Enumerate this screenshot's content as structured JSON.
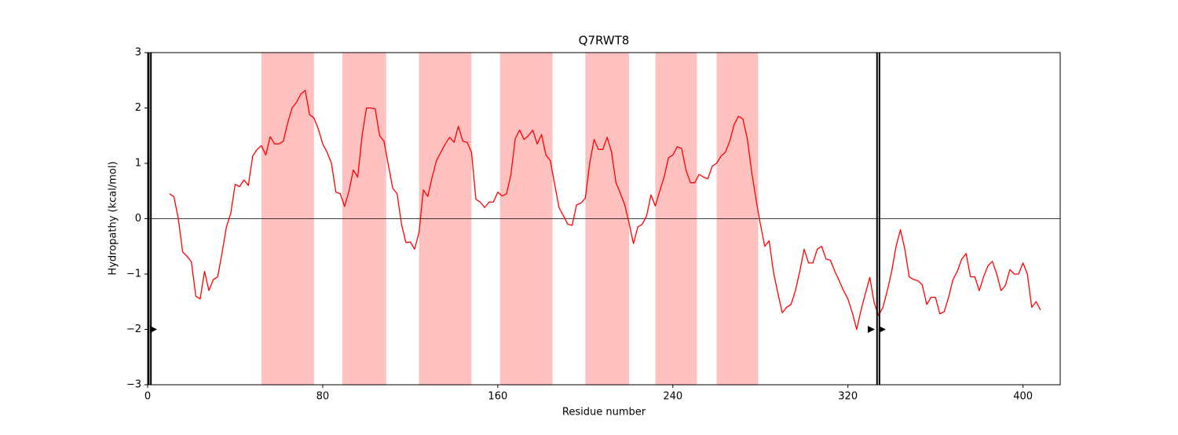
{
  "chart_data": {
    "type": "line",
    "title": "Q7RWT8",
    "xlabel": "Residue number",
    "ylabel": "Hydropathy (kcal/mol)",
    "xlim": [
      0,
      417
    ],
    "ylim": [
      -3,
      3
    ],
    "xticks": [
      0,
      80,
      160,
      240,
      320,
      400
    ],
    "yticks": [
      {
        "value": -3,
        "label": "−3"
      },
      {
        "value": -2,
        "label": "−2"
      },
      {
        "value": -1,
        "label": "−1"
      },
      0,
      1,
      2,
      3
    ],
    "hline": 0,
    "shaded_regions": [
      [
        52,
        76
      ],
      [
        89,
        109
      ],
      [
        124,
        148
      ],
      [
        161,
        185
      ],
      [
        200,
        220
      ],
      [
        232,
        251
      ],
      [
        260,
        279
      ]
    ],
    "shade_color": "#ffc0c0",
    "vlines": [
      0.5,
      1.5,
      333.3,
      334.4
    ],
    "markers": {
      "x": [
        2.5,
        330.5,
        335.5
      ],
      "y": [
        -2,
        -2,
        -2
      ]
    },
    "series": [
      {
        "color": "#ff0000",
        "x": [
          10,
          12,
          14,
          16,
          18,
          20,
          22,
          24,
          26,
          28,
          30,
          32,
          34,
          36,
          38,
          40,
          42,
          44,
          46,
          48,
          50,
          52,
          54,
          56,
          58,
          60,
          62,
          64,
          66,
          68,
          70,
          72,
          74,
          76,
          78,
          80,
          82,
          84,
          86,
          88,
          90,
          92,
          94,
          96,
          98,
          100,
          102,
          104,
          106,
          108,
          110,
          112,
          114,
          116,
          118,
          120,
          122,
          124,
          126,
          128,
          130,
          132,
          134,
          136,
          138,
          140,
          142,
          144,
          146,
          148,
          150,
          152,
          154,
          156,
          158,
          160,
          162,
          164,
          166,
          168,
          170,
          172,
          174,
          176,
          178,
          180,
          182,
          184,
          186,
          188,
          190,
          192,
          194,
          196,
          198,
          200,
          202,
          204,
          206,
          208,
          210,
          212,
          214,
          216,
          218,
          220,
          222,
          224,
          226,
          228,
          230,
          232,
          234,
          236,
          238,
          240,
          242,
          244,
          246,
          248,
          250,
          252,
          254,
          256,
          258,
          260,
          262,
          264,
          266,
          268,
          270,
          272,
          274,
          276,
          278,
          280,
          282,
          284,
          286,
          288,
          290,
          292,
          294,
          296,
          298,
          300,
          302,
          304,
          306,
          308,
          310,
          312,
          314,
          316,
          318,
          320,
          322,
          324,
          326,
          328,
          330,
          332,
          334,
          336,
          338,
          340,
          342,
          344,
          346,
          348,
          350,
          352,
          354,
          356,
          358,
          360,
          362,
          364,
          366,
          368,
          370,
          372,
          374,
          376,
          378,
          380,
          382,
          384,
          386,
          388,
          390,
          392,
          394,
          396,
          398,
          400,
          402,
          404,
          406,
          408
        ],
        "values": [
          0.45,
          0.4,
          0.0,
          -0.6,
          -0.68,
          -0.78,
          -1.4,
          -1.45,
          -0.95,
          -1.3,
          -1.1,
          -1.05,
          -0.62,
          -0.15,
          0.1,
          0.62,
          0.58,
          0.7,
          0.6,
          1.13,
          1.25,
          1.32,
          1.15,
          1.48,
          1.35,
          1.35,
          1.4,
          1.73,
          2.0,
          2.1,
          2.25,
          2.32,
          1.88,
          1.82,
          1.62,
          1.35,
          1.2,
          1.0,
          0.48,
          0.45,
          0.22,
          0.5,
          0.88,
          0.75,
          1.5,
          2.0,
          2.0,
          1.98,
          1.5,
          1.4,
          0.97,
          0.55,
          0.45,
          -0.1,
          -0.43,
          -0.42,
          -0.55,
          -0.25,
          0.52,
          0.4,
          0.75,
          1.05,
          1.2,
          1.35,
          1.47,
          1.38,
          1.67,
          1.4,
          1.38,
          1.2,
          0.35,
          0.3,
          0.2,
          0.3,
          0.3,
          0.48,
          0.41,
          0.45,
          0.8,
          1.45,
          1.6,
          1.43,
          1.5,
          1.6,
          1.35,
          1.52,
          1.15,
          1.05,
          0.62,
          0.2,
          0.05,
          -0.1,
          -0.12,
          0.25,
          0.28,
          0.37,
          1.0,
          1.43,
          1.25,
          1.25,
          1.47,
          1.2,
          0.65,
          0.46,
          0.25,
          -0.08,
          -0.45,
          -0.15,
          -0.1,
          0.05,
          0.43,
          0.23,
          0.5,
          0.75,
          1.1,
          1.15,
          1.3,
          1.27,
          0.88,
          0.65,
          0.65,
          0.8,
          0.75,
          0.72,
          0.95,
          1.0,
          1.13,
          1.2,
          1.4,
          1.7,
          1.85,
          1.8,
          1.45,
          0.85,
          0.35,
          -0.1,
          -0.5,
          -0.4,
          -0.97,
          -1.35,
          -1.7,
          -1.6,
          -1.55,
          -1.3,
          -0.95,
          -0.55,
          -0.8,
          -0.8,
          -0.55,
          -0.5,
          -0.73,
          -0.75,
          -0.95,
          -1.12,
          -1.3,
          -1.45,
          -1.7,
          -2.0,
          -1.65,
          -1.35,
          -1.06,
          -1.52,
          -1.75,
          -1.6,
          -1.3,
          -0.95,
          -0.5,
          -0.2,
          -0.55,
          -1.05,
          -1.1,
          -1.12,
          -1.2,
          -1.55,
          -1.42,
          -1.42,
          -1.72,
          -1.68,
          -1.42,
          -1.1,
          -0.95,
          -0.73,
          -0.63,
          -1.05,
          -1.05,
          -1.3,
          -1.05,
          -0.85,
          -0.77,
          -1.0,
          -1.3,
          -1.2,
          -0.92,
          -1.0,
          -1.0,
          -0.8,
          -1.0,
          -1.6,
          -1.5,
          -1.65
        ]
      }
    ]
  }
}
